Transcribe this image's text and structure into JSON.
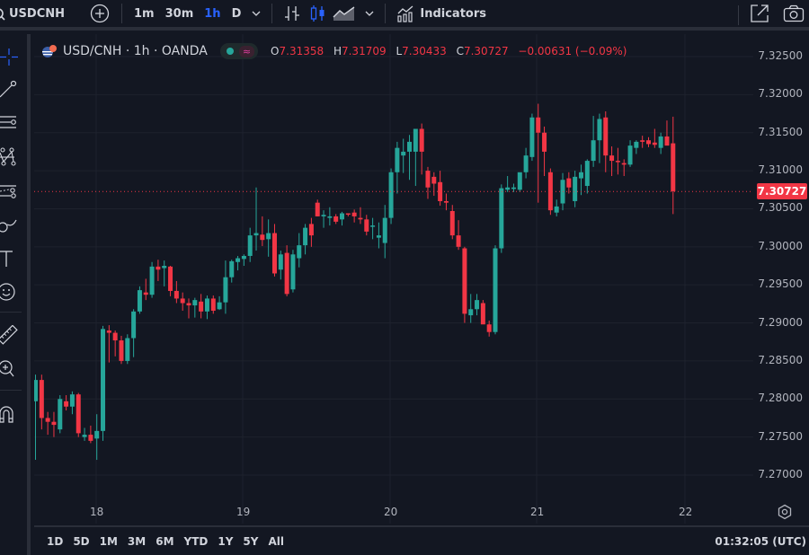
{
  "topbar": {
    "symbol": "USDCNH",
    "intervals": [
      "1m",
      "30m",
      "1h",
      "D"
    ],
    "active_interval": "1h",
    "indicators_label": "Indicators",
    "icons": [
      "search-icon",
      "add-symbol-icon",
      "interval-dropdown-icon",
      "bar-style-icon",
      "candles-style-icon",
      "area-style-icon",
      "chart-type-dropdown-icon",
      "indicators-icon",
      "open-in-new-window-icon",
      "screenshot-camera-icon"
    ]
  },
  "left_toolbar": {
    "tools": [
      "crosshair-icon",
      "trend-line-icon",
      "horizontal-lines-icon",
      "pattern-icon",
      "fib-channel-icon",
      "brush-icon",
      "text-icon",
      "emoji-icon",
      "ruler-icon",
      "zoom-in-icon",
      "magnet-icon"
    ]
  },
  "legend": {
    "title": "USD/CNH · 1h · OANDA",
    "open_label": "O",
    "open": "7.31358",
    "high_label": "H",
    "high": "7.31709",
    "low_label": "L",
    "low": "7.30433",
    "close_label": "C",
    "close": "7.30727",
    "change": "−0.00631 (−0.09%)",
    "pill_symbol": "≈"
  },
  "price_axis": {
    "labels": [
      "7.32500",
      "7.32000",
      "7.31500",
      "7.31000",
      "7.30500",
      "7.30000",
      "7.29500",
      "7.29000",
      "7.28500",
      "7.28000",
      "7.27500",
      "7.27000"
    ],
    "current_price": "7.30727"
  },
  "time_axis": {
    "labels": [
      "18",
      "19",
      "20",
      "21",
      "22"
    ]
  },
  "bottom_bar": {
    "ranges": [
      "1D",
      "5D",
      "1M",
      "3M",
      "6M",
      "YTD",
      "1Y",
      "5Y",
      "All"
    ],
    "clock": "01:32:05 (UTC)"
  },
  "colors": {
    "background": "#131722",
    "up": "#26a69a",
    "down": "#f23645",
    "accent": "#2962ff",
    "grid": "#1e222d"
  },
  "chart_data": {
    "type": "candlestick",
    "title": "USD/CNH · 1h · OANDA",
    "ylim": [
      7.2665,
      7.3275
    ],
    "yticks": [
      7.325,
      7.32,
      7.315,
      7.31,
      7.305,
      7.3,
      7.295,
      7.29,
      7.285,
      7.28,
      7.275,
      7.27
    ],
    "xticks": [
      "18",
      "19",
      "20",
      "21",
      "22"
    ],
    "current_price": 7.30727,
    "candles": [
      [
        7.2797,
        7.2832,
        7.272,
        7.2825
      ],
      [
        7.2825,
        7.2832,
        7.276,
        7.2775
      ],
      [
        7.2775,
        7.2783,
        7.2753,
        7.277
      ],
      [
        7.277,
        7.2783,
        7.275,
        7.2766
      ],
      [
        7.276,
        7.2805,
        7.2755,
        7.28
      ],
      [
        7.2797,
        7.2805,
        7.2785,
        7.279
      ],
      [
        7.279,
        7.281,
        7.278,
        7.2806
      ],
      [
        7.2806,
        7.2808,
        7.275,
        7.2755
      ],
      [
        7.275,
        7.2762,
        7.2745,
        7.2753
      ],
      [
        7.2753,
        7.2765,
        7.2742,
        7.2745
      ],
      [
        7.2748,
        7.278,
        7.272,
        7.2758
      ],
      [
        7.2758,
        7.2896,
        7.2745,
        7.2892
      ],
      [
        7.289,
        7.2897,
        7.2848,
        7.2887
      ],
      [
        7.2887,
        7.289,
        7.2856,
        7.2877
      ],
      [
        7.2877,
        7.2883,
        7.2846,
        7.285
      ],
      [
        7.285,
        7.2885,
        7.2846,
        7.288
      ],
      [
        7.288,
        7.2918,
        7.2855,
        7.2915
      ],
      [
        7.2915,
        7.2948,
        7.2912,
        7.2943
      ],
      [
        7.294,
        7.2958,
        7.293,
        7.2937
      ],
      [
        7.2937,
        7.298,
        7.2933,
        7.2974
      ],
      [
        7.2974,
        7.2983,
        7.2955,
        7.297
      ],
      [
        7.2972,
        7.2982,
        7.2948,
        7.2975
      ],
      [
        7.2974,
        7.2975,
        7.2935,
        7.2942
      ],
      [
        7.2942,
        7.2955,
        7.2926,
        7.2932
      ],
      [
        7.2932,
        7.294,
        7.2916,
        7.2926
      ],
      [
        7.2926,
        7.2932,
        7.2906,
        7.2923
      ],
      [
        7.2923,
        7.2933,
        7.2907,
        7.293
      ],
      [
        7.2928,
        7.2938,
        7.2906,
        7.2915
      ],
      [
        7.2915,
        7.2936,
        7.2905,
        7.2932
      ],
      [
        7.2932,
        7.2936,
        7.2912,
        7.2916
      ],
      [
        7.2918,
        7.2935,
        7.2917,
        7.2927
      ],
      [
        7.2927,
        7.2982,
        7.2912,
        7.296
      ],
      [
        7.296,
        7.2983,
        7.2953,
        7.2981
      ],
      [
        7.298,
        7.2988,
        7.2969,
        7.2985
      ],
      [
        7.2984,
        7.299,
        7.2975,
        7.2988
      ],
      [
        7.2988,
        7.3025,
        7.298,
        7.3015
      ],
      [
        7.3015,
        7.3078,
        7.2995,
        7.3018
      ],
      [
        7.3016,
        7.304,
        7.3001,
        7.3009
      ],
      [
        7.301,
        7.3036,
        7.2987,
        7.3018
      ],
      [
        7.3018,
        7.303,
        7.2961,
        7.2965
      ],
      [
        7.297,
        7.2995,
        7.2957,
        7.299
      ],
      [
        7.2992,
        7.3002,
        7.2935,
        7.2938
      ],
      [
        7.2944,
        7.2996,
        7.294,
        7.299
      ],
      [
        7.2985,
        7.3018,
        7.2973,
        7.3002
      ],
      [
        7.3002,
        7.303,
        7.299,
        7.3025
      ],
      [
        7.303,
        7.3038,
        7.3,
        7.3015
      ],
      [
        7.3058,
        7.3062,
        7.304,
        7.304
      ],
      [
        7.304,
        7.3048,
        7.3025,
        7.3042
      ],
      [
        7.3038,
        7.3052,
        7.3028,
        7.304
      ],
      [
        7.304,
        7.3043,
        7.303,
        7.3033
      ],
      [
        7.3036,
        7.3046,
        7.3028,
        7.3044
      ],
      [
        7.3044,
        7.3044,
        7.304,
        7.3043
      ],
      [
        7.3045,
        7.3049,
        7.3032,
        7.304
      ],
      [
        7.3038,
        7.3052,
        7.303,
        7.3036
      ],
      [
        7.3036,
        7.3042,
        7.3015,
        7.302
      ],
      [
        7.3028,
        7.3038,
        7.301,
        7.3028
      ],
      [
        7.3012,
        7.3032,
        7.2998,
        7.3015
      ],
      [
        7.3005,
        7.3055,
        7.2985,
        7.3038
      ],
      [
        7.3038,
        7.3103,
        7.303,
        7.3098
      ],
      [
        7.3098,
        7.3138,
        7.307,
        7.313
      ],
      [
        7.312,
        7.3142,
        7.3097,
        7.3125
      ],
      [
        7.3125,
        7.3147,
        7.3088,
        7.3138
      ],
      [
        7.3125,
        7.3154,
        7.308,
        7.3155
      ],
      [
        7.3155,
        7.3162,
        7.3095,
        7.3125
      ],
      [
        7.31,
        7.3105,
        7.3063,
        7.3078
      ],
      [
        7.3092,
        7.3098,
        7.3067,
        7.3083
      ],
      [
        7.3085,
        7.31,
        7.3054,
        7.306
      ],
      [
        7.306,
        7.307,
        7.3048,
        7.3058
      ],
      [
        7.3047,
        7.3055,
        7.301,
        7.3015
      ],
      [
        7.3015,
        7.3035,
        7.2996,
        7.3
      ],
      [
        7.2998,
        7.3,
        7.29,
        7.2912
      ],
      [
        7.291,
        7.2938,
        7.29,
        7.2918
      ],
      [
        7.2918,
        7.2938,
        7.291,
        7.293
      ],
      [
        7.2926,
        7.293,
        7.29,
        7.2898
      ],
      [
        7.2898,
        7.2903,
        7.2882,
        7.2888
      ],
      [
        7.2888,
        7.3002,
        7.2885,
        7.2998
      ],
      [
        7.2998,
        7.3082,
        7.2992,
        7.3077
      ],
      [
        7.3075,
        7.3093,
        7.3072,
        7.3078
      ],
      [
        7.3076,
        7.3083,
        7.3072,
        7.3078
      ],
      [
        7.3075,
        7.3093,
        7.3072,
        7.3098
      ],
      [
        7.3098,
        7.313,
        7.309,
        7.312
      ],
      [
        7.3118,
        7.3175,
        7.3113,
        7.317
      ],
      [
        7.317,
        7.3188,
        7.3058,
        7.315
      ],
      [
        7.315,
        7.3158,
        7.3093,
        7.3125
      ],
      [
        7.3098,
        7.3103,
        7.3042,
        7.3048
      ],
      [
        7.3045,
        7.3062,
        7.304,
        7.3053
      ],
      [
        7.3057,
        7.3097,
        7.3048,
        7.3088
      ],
      [
        7.309,
        7.3098,
        7.307,
        7.3078
      ],
      [
        7.306,
        7.31,
        7.3052,
        7.3092
      ],
      [
        7.309,
        7.3108,
        7.3068,
        7.3098
      ],
      [
        7.308,
        7.3115,
        7.307,
        7.3113
      ],
      [
        7.3113,
        7.3172,
        7.3105,
        7.314
      ],
      [
        7.314,
        7.3175,
        7.311,
        7.3168
      ],
      [
        7.317,
        7.3178,
        7.3098,
        7.312
      ],
      [
        7.312,
        7.3132,
        7.3093,
        7.3113
      ],
      [
        7.3113,
        7.313,
        7.3095,
        7.3112
      ],
      [
        7.311,
        7.3115,
        7.3093,
        7.3108
      ],
      [
        7.3108,
        7.314,
        7.3105,
        7.3133
      ],
      [
        7.313,
        7.314,
        7.3122,
        7.3138
      ],
      [
        7.314,
        7.3146,
        7.313,
        7.3138
      ],
      [
        7.314,
        7.3144,
        7.3131,
        7.3135
      ],
      [
        7.3137,
        7.3155,
        7.313,
        7.3134
      ],
      [
        7.313,
        7.315,
        7.3122,
        7.3145
      ],
      [
        7.3145,
        7.3166,
        7.3138,
        7.3133
      ],
      [
        7.3136,
        7.3171,
        7.3043,
        7.3073
      ]
    ]
  }
}
